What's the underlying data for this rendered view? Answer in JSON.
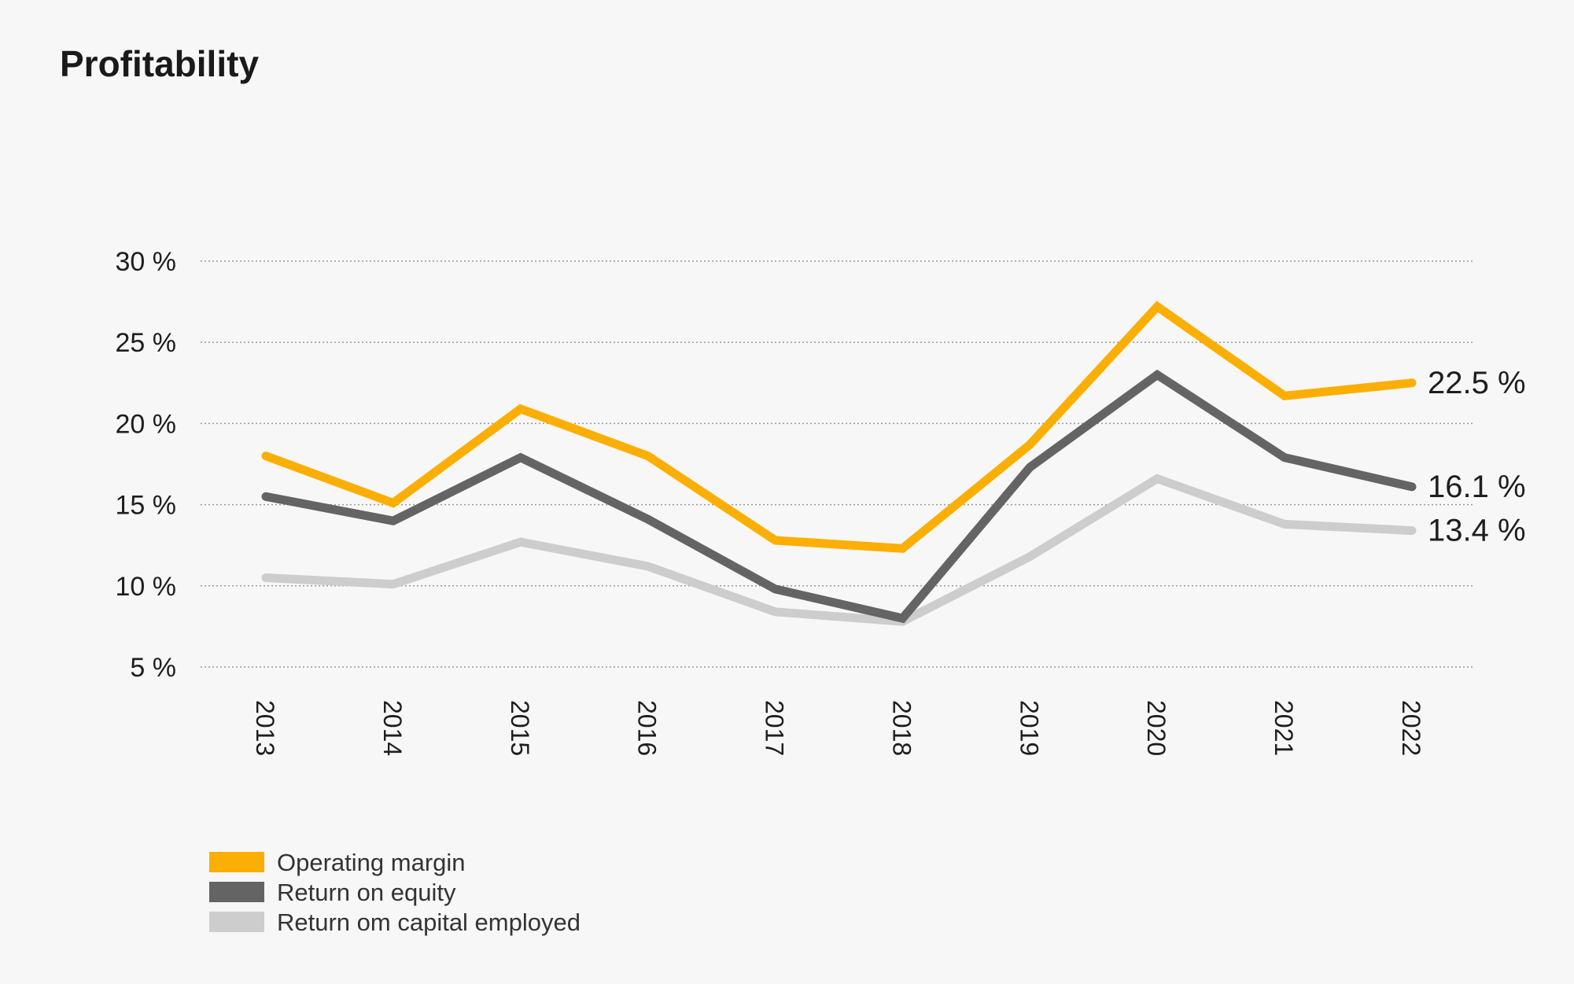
{
  "chart_data": {
    "type": "line",
    "title": "Profitability",
    "xlabel": "",
    "ylabel": "",
    "ylim": [
      5,
      30
    ],
    "yticks": [
      5,
      10,
      15,
      20,
      25,
      30
    ],
    "ytick_labels": [
      "5 %",
      "10 %",
      "15 %",
      "20 %",
      "25 %",
      "30 %"
    ],
    "grid": true,
    "legend_position": "bottom-left",
    "categories": [
      "2013",
      "2014",
      "2015",
      "2016",
      "2017",
      "2018",
      "2019",
      "2020",
      "2021",
      "2022"
    ],
    "series": [
      {
        "name": "Operating margin",
        "color": "#FBAF05",
        "values": [
          18.0,
          15.1,
          20.9,
          18.0,
          12.8,
          12.3,
          18.7,
          27.2,
          21.7,
          22.5
        ],
        "end_label": "22.5 %"
      },
      {
        "name": "Return on equity",
        "color": "#646464",
        "values": [
          15.5,
          14.0,
          17.9,
          14.1,
          9.8,
          8.0,
          17.3,
          23.0,
          17.9,
          16.1
        ],
        "end_label": "16.1 %"
      },
      {
        "name": "Return om capital employed",
        "color": "#CDCDCD",
        "values": [
          10.5,
          10.1,
          12.7,
          11.2,
          8.4,
          7.8,
          11.8,
          16.6,
          13.8,
          13.4
        ],
        "end_label": "13.4 %"
      }
    ]
  }
}
